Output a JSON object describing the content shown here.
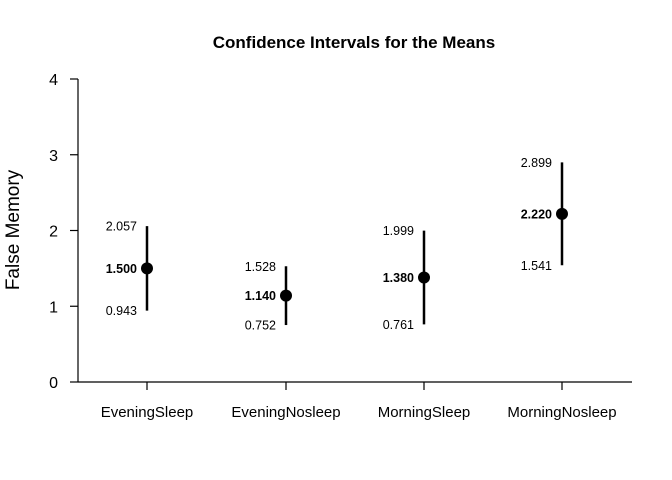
{
  "chart_data": {
    "type": "errorbar",
    "title": "Confidence Intervals for the Means",
    "xlabel": "",
    "ylabel": "False Memory",
    "ylim": [
      0,
      4
    ],
    "yticks": [
      "0",
      "1",
      "2",
      "3",
      "4"
    ],
    "grid": false,
    "categories": [
      "EveningSleep",
      "EveningNosleep",
      "MorningSleep",
      "MorningNosleep"
    ],
    "series": [
      {
        "means": [
          1.5,
          1.14,
          1.38,
          2.22
        ],
        "lower": [
          0.943,
          0.752,
          0.761,
          1.541
        ],
        "upper": [
          2.057,
          1.528,
          1.999,
          2.899
        ]
      }
    ],
    "labels": {
      "mean": [
        "1.500",
        "1.140",
        "1.380",
        "2.220"
      ],
      "lower": [
        "0.943",
        "0.752",
        "0.761",
        "1.541"
      ],
      "upper": [
        "2.057",
        "1.528",
        "1.999",
        "2.899"
      ]
    }
  }
}
